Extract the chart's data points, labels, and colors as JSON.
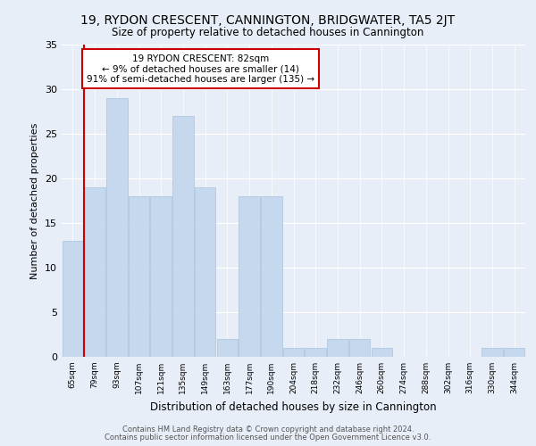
{
  "title1": "19, RYDON CRESCENT, CANNINGTON, BRIDGWATER, TA5 2JT",
  "title2": "Size of property relative to detached houses in Cannington",
  "xlabel": "Distribution of detached houses by size in Cannington",
  "ylabel": "Number of detached properties",
  "categories": [
    "65sqm",
    "79sqm",
    "93sqm",
    "107sqm",
    "121sqm",
    "135sqm",
    "149sqm",
    "163sqm",
    "177sqm",
    "190sqm",
    "204sqm",
    "218sqm",
    "232sqm",
    "246sqm",
    "260sqm",
    "274sqm",
    "288sqm",
    "302sqm",
    "316sqm",
    "330sqm",
    "344sqm"
  ],
  "values": [
    13,
    19,
    29,
    18,
    18,
    27,
    19,
    2,
    18,
    18,
    1,
    1,
    2,
    2,
    1,
    0,
    0,
    0,
    0,
    1,
    1
  ],
  "highlight_index": 1,
  "bar_color": "#c5d8ed",
  "highlight_color": "#c5d8ed",
  "highlight_line_color": "#cc0000",
  "bar_edge_color": "#a8c4de",
  "background_color": "#e8eef7",
  "plot_bg_color": "#e8eef7",
  "annotation_text": "19 RYDON CRESCENT: 82sqm\n← 9% of detached houses are smaller (14)\n91% of semi-detached houses are larger (135) →",
  "annotation_box_color": "#ffffff",
  "annotation_border_color": "#cc0000",
  "ylim": [
    0,
    35
  ],
  "yticks": [
    0,
    5,
    10,
    15,
    20,
    25,
    30,
    35
  ],
  "footer1": "Contains HM Land Registry data © Crown copyright and database right 2024.",
  "footer2": "Contains public sector information licensed under the Open Government Licence v3.0."
}
